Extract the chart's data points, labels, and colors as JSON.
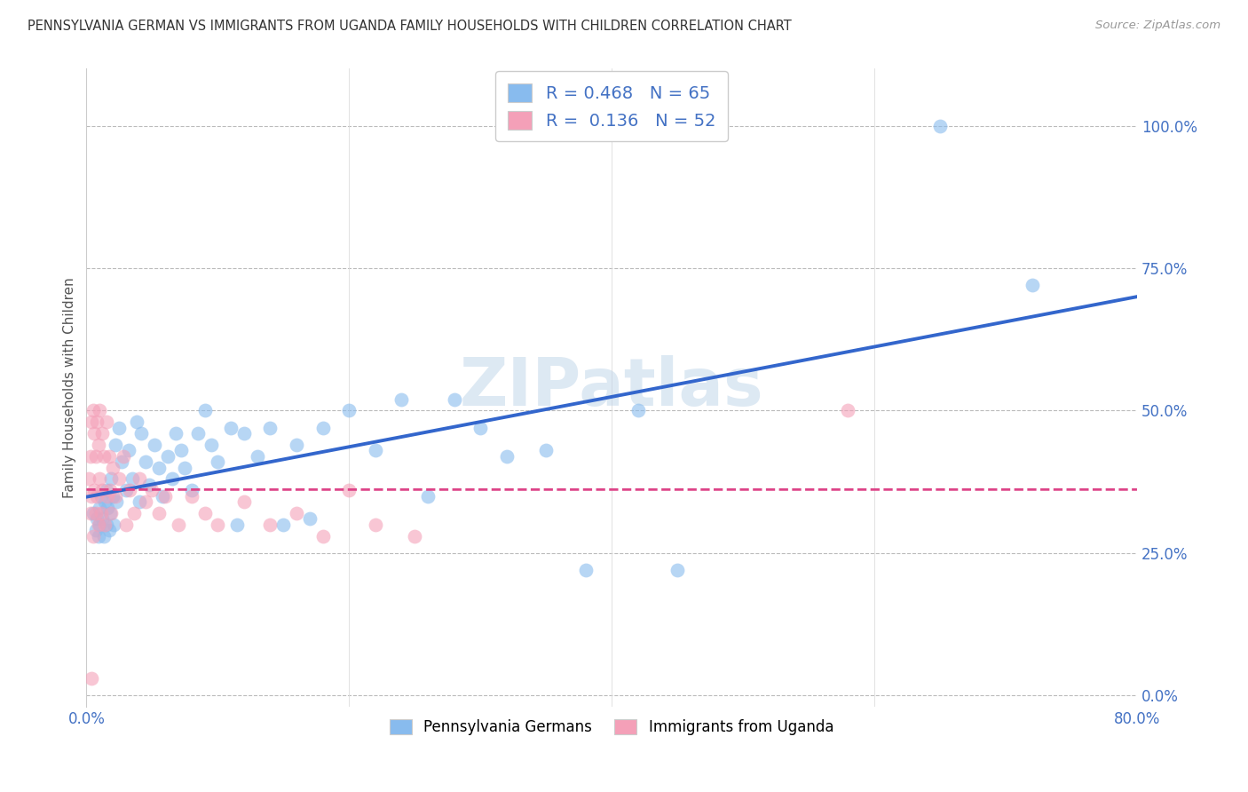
{
  "title": "PENNSYLVANIA GERMAN VS IMMIGRANTS FROM UGANDA FAMILY HOUSEHOLDS WITH CHILDREN CORRELATION CHART",
  "source": "Source: ZipAtlas.com",
  "ylabel": "Family Households with Children",
  "xlim": [
    0.0,
    0.8
  ],
  "ylim": [
    -0.02,
    1.1
  ],
  "yticks": [
    0.0,
    0.25,
    0.5,
    0.75,
    1.0
  ],
  "ytick_labels": [
    "0.0%",
    "25.0%",
    "50.0%",
    "75.0%",
    "100.0%"
  ],
  "xticks": [
    0.0,
    0.2,
    0.4,
    0.6,
    0.8
  ],
  "xtick_labels": [
    "0.0%",
    "",
    "",
    "",
    "80.0%"
  ],
  "blue_R": 0.468,
  "blue_N": 65,
  "pink_R": 0.136,
  "pink_N": 52,
  "blue_color": "#88bbee",
  "pink_color": "#f4a0b8",
  "blue_line_color": "#3366cc",
  "pink_line_color": "#dd4488",
  "pink_line_style": "dashed",
  "watermark": "ZIPatlas",
  "legend_label_blue": "Pennsylvania Germans",
  "legend_label_pink": "Immigrants from Uganda",
  "blue_points_x": [
    0.005,
    0.007,
    0.008,
    0.009,
    0.01,
    0.01,
    0.011,
    0.012,
    0.013,
    0.014,
    0.015,
    0.015,
    0.016,
    0.017,
    0.018,
    0.019,
    0.02,
    0.021,
    0.022,
    0.023,
    0.025,
    0.027,
    0.03,
    0.032,
    0.035,
    0.038,
    0.04,
    0.042,
    0.045,
    0.048,
    0.052,
    0.055,
    0.058,
    0.062,
    0.065,
    0.068,
    0.072,
    0.075,
    0.08,
    0.085,
    0.09,
    0.095,
    0.1,
    0.11,
    0.115,
    0.12,
    0.13,
    0.14,
    0.15,
    0.16,
    0.17,
    0.18,
    0.2,
    0.22,
    0.24,
    0.26,
    0.28,
    0.3,
    0.32,
    0.35,
    0.38,
    0.42,
    0.45,
    0.65,
    0.72
  ],
  "blue_points_y": [
    0.32,
    0.29,
    0.31,
    0.28,
    0.33,
    0.3,
    0.35,
    0.31,
    0.28,
    0.34,
    0.3,
    0.36,
    0.33,
    0.29,
    0.32,
    0.38,
    0.35,
    0.3,
    0.44,
    0.34,
    0.47,
    0.41,
    0.36,
    0.43,
    0.38,
    0.48,
    0.34,
    0.46,
    0.41,
    0.37,
    0.44,
    0.4,
    0.35,
    0.42,
    0.38,
    0.46,
    0.43,
    0.4,
    0.36,
    0.46,
    0.5,
    0.44,
    0.41,
    0.47,
    0.3,
    0.46,
    0.42,
    0.47,
    0.3,
    0.44,
    0.31,
    0.47,
    0.5,
    0.43,
    0.52,
    0.35,
    0.52,
    0.47,
    0.42,
    0.43,
    0.22,
    0.5,
    0.22,
    1.0,
    0.72
  ],
  "pink_points_x": [
    0.002,
    0.003,
    0.003,
    0.004,
    0.004,
    0.005,
    0.005,
    0.006,
    0.006,
    0.007,
    0.007,
    0.008,
    0.008,
    0.009,
    0.009,
    0.01,
    0.01,
    0.011,
    0.012,
    0.012,
    0.013,
    0.014,
    0.015,
    0.016,
    0.017,
    0.018,
    0.019,
    0.02,
    0.022,
    0.025,
    0.028,
    0.03,
    0.033,
    0.036,
    0.04,
    0.045,
    0.05,
    0.055,
    0.06,
    0.07,
    0.08,
    0.09,
    0.1,
    0.12,
    0.14,
    0.16,
    0.18,
    0.2,
    0.22,
    0.25,
    0.58,
    0.004
  ],
  "pink_points_y": [
    0.38,
    0.42,
    0.32,
    0.48,
    0.35,
    0.5,
    0.28,
    0.46,
    0.36,
    0.42,
    0.32,
    0.48,
    0.35,
    0.44,
    0.3,
    0.5,
    0.38,
    0.32,
    0.46,
    0.36,
    0.42,
    0.3,
    0.48,
    0.35,
    0.42,
    0.36,
    0.32,
    0.4,
    0.35,
    0.38,
    0.42,
    0.3,
    0.36,
    0.32,
    0.38,
    0.34,
    0.36,
    0.32,
    0.35,
    0.3,
    0.35,
    0.32,
    0.3,
    0.34,
    0.3,
    0.32,
    0.28,
    0.36,
    0.3,
    0.28,
    0.5,
    0.03
  ]
}
